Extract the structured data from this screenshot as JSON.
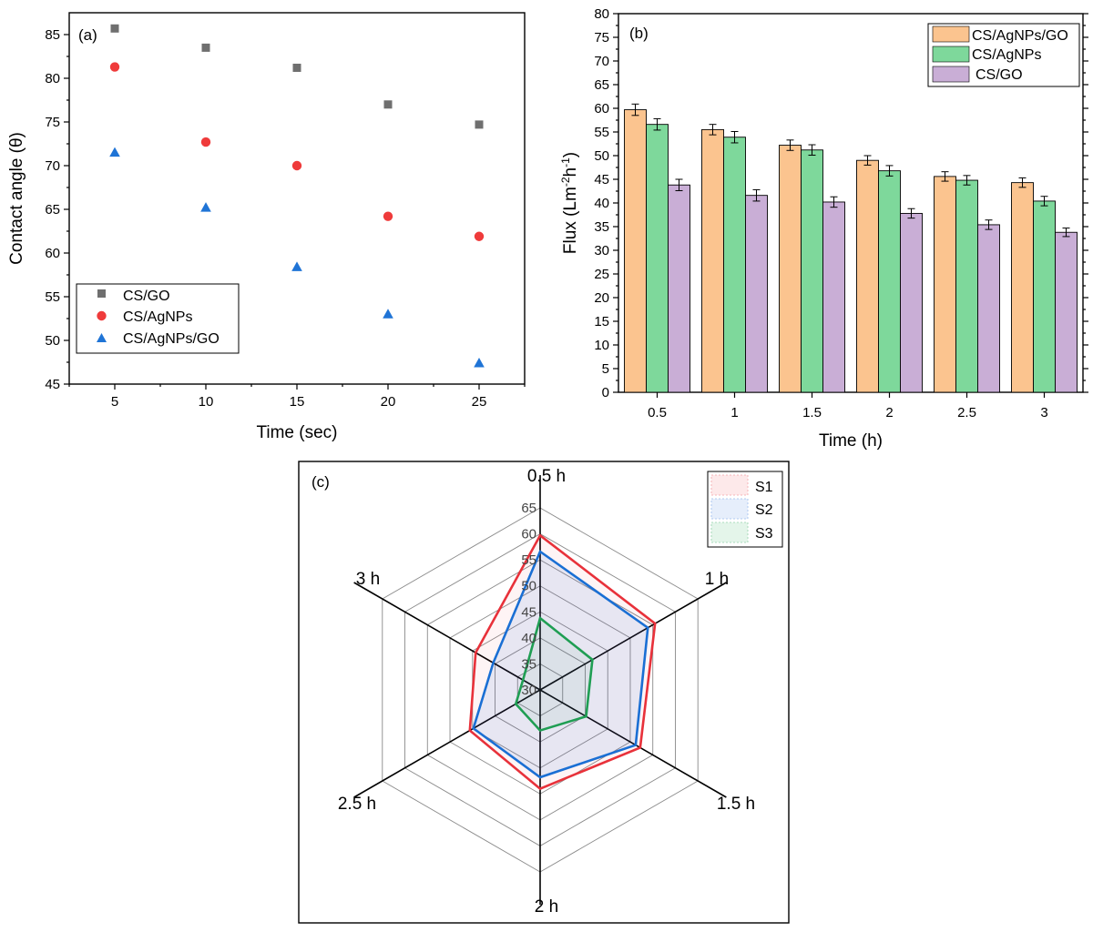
{
  "colors": {
    "square": "#6f6f6f",
    "circle": "#ef3b3b",
    "triangle": "#1f74d6",
    "bar1": "#fbc48f",
    "bar2": "#7ed89b",
    "bar3": "#c9aed6",
    "S1": "#e8313a",
    "S2": "#1a6fd4",
    "S3": "#1f9e53"
  },
  "chart_data": [
    {
      "type": "scatter",
      "panel_label": "(a)",
      "xlabel": "Time (sec)",
      "ylabel": "Contact angle (θ)",
      "xlim": [
        2.5,
        27.5
      ],
      "ylim": [
        45,
        87.5
      ],
      "xticks": [
        "5",
        "10",
        "15",
        "20",
        "25"
      ],
      "yticks": [
        "45",
        "50",
        "55",
        "60",
        "65",
        "70",
        "75",
        "80",
        "85"
      ],
      "legend_position": "bottom-left",
      "series": [
        {
          "name": "CS/GO",
          "marker": "square",
          "x": [
            5,
            10,
            15,
            20,
            25
          ],
          "y": [
            85.7,
            83.5,
            81.2,
            77.0,
            74.7
          ]
        },
        {
          "name": "CS/AgNPs",
          "marker": "circle",
          "x": [
            5,
            10,
            15,
            20,
            25
          ],
          "y": [
            81.3,
            72.7,
            70.0,
            64.2,
            61.9
          ]
        },
        {
          "name": "CS/AgNPs/GO",
          "marker": "triangle",
          "x": [
            5,
            10,
            15,
            20,
            25
          ],
          "y": [
            71.5,
            65.2,
            58.4,
            53.0,
            47.4
          ]
        }
      ]
    },
    {
      "type": "bar",
      "panel_label": "(b)",
      "xlabel": "Time (h)",
      "ylabel_main": "Flux (Lm",
      "ylabel_sup1": "-2",
      "ylabel_mid": "h",
      "ylabel_sup2": "-1",
      "ylabel_end": ")",
      "ylim": [
        0,
        80
      ],
      "yticks": [
        "0",
        "5",
        "10",
        "15",
        "20",
        "25",
        "30",
        "35",
        "40",
        "45",
        "50",
        "55",
        "60",
        "65",
        "70",
        "75",
        "80"
      ],
      "categories": [
        "0.5",
        "1",
        "1.5",
        "2",
        "2.5",
        "3"
      ],
      "legend_position": "top-right",
      "series": [
        {
          "name": "CS/AgNPs/GO",
          "values": [
            59.7,
            55.5,
            52.2,
            49.0,
            45.6,
            44.3
          ],
          "errors": [
            1.2,
            1.1,
            1.1,
            1.0,
            1.0,
            1.0
          ]
        },
        {
          "name": "CS/AgNPs",
          "values": [
            56.6,
            53.9,
            51.2,
            46.8,
            44.8,
            40.4
          ],
          "errors": [
            1.2,
            1.2,
            1.1,
            1.1,
            1.0,
            1.0
          ]
        },
        {
          "name": "CS/GO",
          "values": [
            43.8,
            41.6,
            40.2,
            37.8,
            35.4,
            33.8
          ],
          "errors": [
            1.2,
            1.2,
            1.1,
            1.0,
            1.0,
            0.9
          ]
        }
      ]
    },
    {
      "type": "radar",
      "panel_label": "(c)",
      "axes": [
        "0.5 h",
        "1 h",
        "1.5 h",
        "2 h",
        "2.5 h",
        "3 h"
      ],
      "rlim": [
        30,
        65
      ],
      "rticks": [
        "30",
        "35",
        "40",
        "45",
        "50",
        "55",
        "60",
        "65"
      ],
      "legend_position": "top-right",
      "series": [
        {
          "name": "S1",
          "values": [
            59.7,
            55.5,
            52.2,
            49.0,
            45.6,
            44.3
          ]
        },
        {
          "name": "S2",
          "values": [
            56.6,
            53.9,
            51.2,
            46.8,
            44.8,
            40.4
          ]
        },
        {
          "name": "S3",
          "values": [
            43.8,
            41.6,
            40.2,
            37.8,
            35.4,
            33.8
          ]
        }
      ]
    }
  ]
}
